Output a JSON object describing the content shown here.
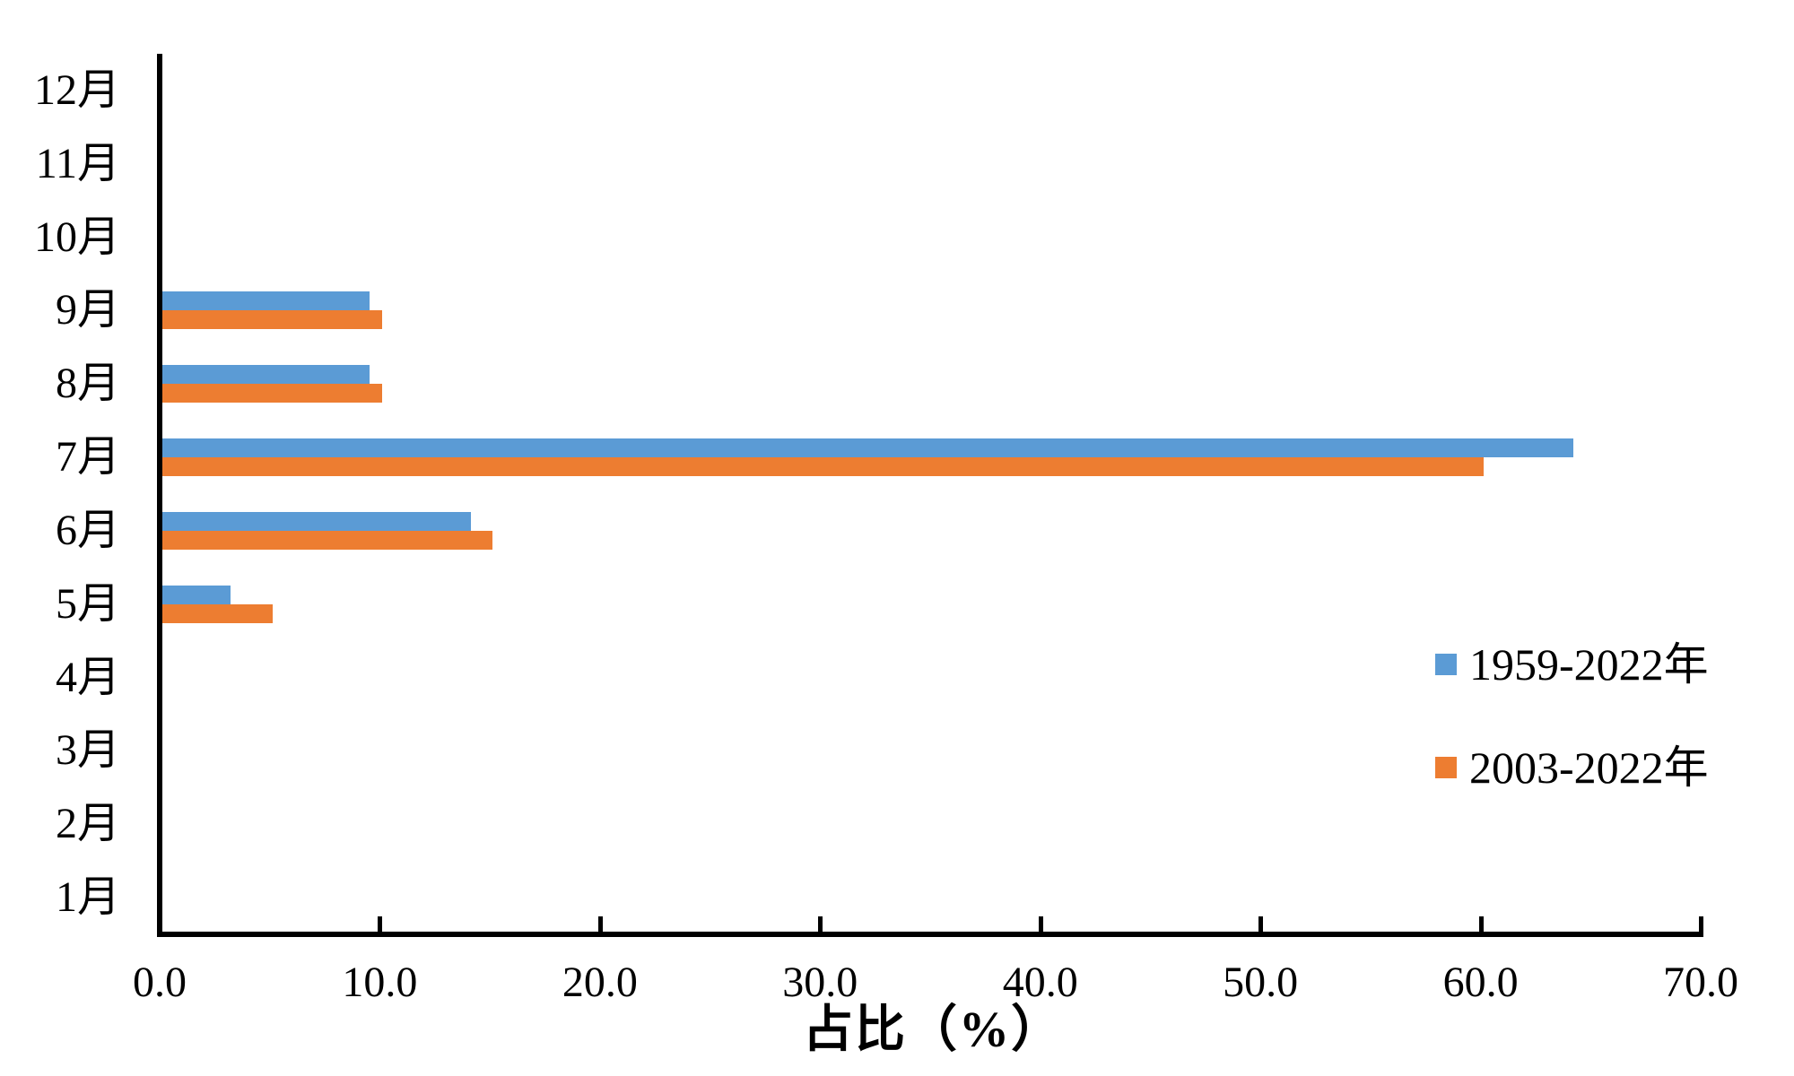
{
  "chart_data": {
    "type": "bar",
    "orientation": "horizontal",
    "title": "",
    "xlabel": "占比（%）",
    "ylabel": "",
    "categories": [
      "1月",
      "2月",
      "3月",
      "4月",
      "5月",
      "6月",
      "7月",
      "8月",
      "9月",
      "10月",
      "11月",
      "12月"
    ],
    "category_axis_note": "1月 at bottom of y-axis, 12月 at top; within each month the blue bar is above the orange bar",
    "series": [
      {
        "name": "1959-2022年",
        "color": "#5B9BD5",
        "values": [
          0,
          0,
          0,
          0,
          3.1,
          14.0,
          64.1,
          9.4,
          9.4,
          0,
          0,
          0
        ]
      },
      {
        "name": "2003-2022年",
        "color": "#ED7D31",
        "values": [
          0,
          0,
          0,
          0,
          5.0,
          15.0,
          60.0,
          10.0,
          10.0,
          0,
          0,
          0
        ]
      }
    ],
    "xlim": [
      0,
      70
    ],
    "x_tick_labels": [
      "0.0",
      "10.0",
      "20.0",
      "30.0",
      "40.0",
      "50.0",
      "60.0",
      "70.0"
    ],
    "grid": false,
    "legend_position": "right-center",
    "axis_color": "#000000",
    "background_color": "#ffffff"
  }
}
